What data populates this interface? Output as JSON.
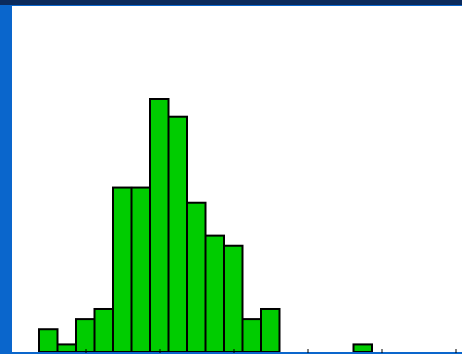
{
  "colors": {
    "frame": "#0a66cc",
    "frame_top": "#0b2a5c",
    "plot_bg": "#ffffff",
    "bar_fill": "#00cc00",
    "bar_edge": "#000000",
    "bar_gap": "#ffffff"
  },
  "chart_data": {
    "type": "bar",
    "title": "",
    "xlabel": "",
    "ylabel": "",
    "grid": false,
    "legend": "none",
    "bin_count": 24,
    "values": [
      9,
      3,
      13,
      17,
      65,
      65,
      100,
      93,
      59,
      46,
      42,
      13,
      17,
      0,
      0,
      0,
      0,
      3,
      0,
      0,
      0,
      0,
      0,
      0
    ],
    "ylim": [
      0,
      100
    ],
    "x_ticks_visible": 6
  }
}
